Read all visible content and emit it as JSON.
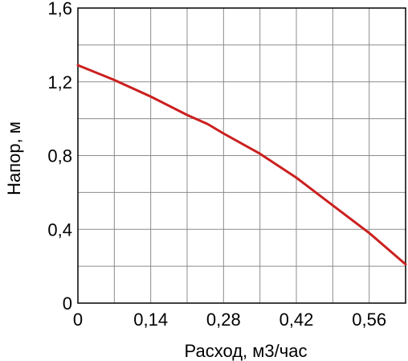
{
  "chart_data": {
    "type": "line",
    "xlabel": "Расход, м3/час",
    "ylabel": "Напор, м",
    "xlim": [
      0,
      0.63
    ],
    "ylim": [
      0,
      1.6
    ],
    "x_ticks": [
      0,
      0.14,
      0.28,
      0.42,
      0.56
    ],
    "x_tick_labels": [
      "0",
      "0,14",
      "0,28",
      "0,42",
      "0,56"
    ],
    "y_ticks": [
      0,
      0.4,
      0.8,
      1.2,
      1.6
    ],
    "y_tick_labels": [
      "0",
      "0,4",
      "0,8",
      "1,2",
      "1,6"
    ],
    "x_grid_step": 0.07,
    "y_grid_step": 0.2,
    "grid": true,
    "series": [
      {
        "color": "#cc1f1f",
        "x": [
          0,
          0.07,
          0.14,
          0.21,
          0.25,
          0.28,
          0.35,
          0.42,
          0.49,
          0.56,
          0.63
        ],
        "y": [
          1.29,
          1.21,
          1.12,
          1.02,
          0.97,
          0.92,
          0.81,
          0.68,
          0.53,
          0.38,
          0.21
        ]
      }
    ]
  }
}
